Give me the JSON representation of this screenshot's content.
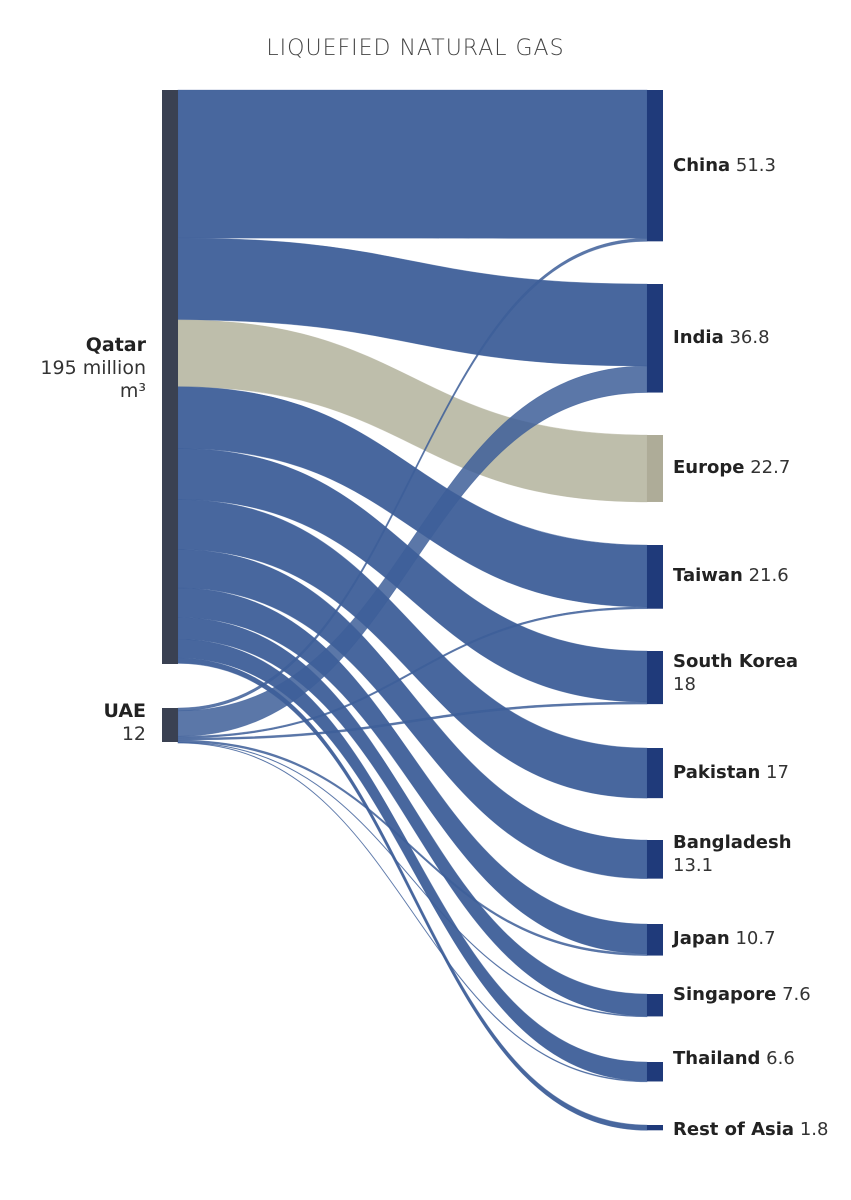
{
  "chart_data": {
    "type": "sankey",
    "title": "LIQUEFIED NATURAL GAS",
    "unit_label": "million",
    "unit_suffix": "m³",
    "sources": [
      {
        "name": "Qatar",
        "value": 195,
        "value_label": "195 million"
      },
      {
        "name": "UAE",
        "value": 12,
        "value_label": "12"
      }
    ],
    "destinations": [
      {
        "name": "China",
        "value": 51.3,
        "value_label": "51.3",
        "color": "#1f3a7a"
      },
      {
        "name": "India",
        "value": 36.8,
        "value_label": "36.8",
        "color": "#1f3a7a"
      },
      {
        "name": "Europe",
        "value": 22.7,
        "value_label": "22.7",
        "color": "#aeac98"
      },
      {
        "name": "Taiwan",
        "value": 21.6,
        "value_label": "21.6",
        "color": "#1f3a7a"
      },
      {
        "name": "South Korea",
        "value": 18,
        "value_label": "18",
        "color": "#1f3a7a"
      },
      {
        "name": "Pakistan",
        "value": 17,
        "value_label": "17",
        "color": "#1f3a7a"
      },
      {
        "name": "Bangladesh",
        "value": 13.1,
        "value_label": "13.1",
        "color": "#1f3a7a"
      },
      {
        "name": "Japan",
        "value": 10.7,
        "value_label": "10.7",
        "color": "#1f3a7a"
      },
      {
        "name": "Singapore",
        "value": 7.6,
        "value_label": "7.6",
        "color": "#1f3a7a"
      },
      {
        "name": "Thailand",
        "value": 6.6,
        "value_label": "6.6",
        "color": "#1f3a7a"
      },
      {
        "name": "Rest of Asia",
        "value": 1.8,
        "value_label": "1.8",
        "color": "#1f3a7a"
      }
    ],
    "flows": [
      {
        "from": "Qatar",
        "to": "China",
        "value": 50.3
      },
      {
        "from": "Qatar",
        "to": "India",
        "value": 27.8
      },
      {
        "from": "Qatar",
        "to": "Europe",
        "value": 22.7
      },
      {
        "from": "Qatar",
        "to": "Taiwan",
        "value": 21.0
      },
      {
        "from": "Qatar",
        "to": "South Korea",
        "value": 17.3
      },
      {
        "from": "Qatar",
        "to": "Pakistan",
        "value": 17.0
      },
      {
        "from": "Qatar",
        "to": "Bangladesh",
        "value": 13.1
      },
      {
        "from": "Qatar",
        "to": "Japan",
        "value": 10.0
      },
      {
        "from": "Qatar",
        "to": "Singapore",
        "value": 7.4
      },
      {
        "from": "Qatar",
        "to": "Thailand",
        "value": 6.4
      },
      {
        "from": "Qatar",
        "to": "Rest of Asia",
        "value": 1.8
      },
      {
        "from": "UAE",
        "to": "China",
        "value": 1.0
      },
      {
        "from": "UAE",
        "to": "India",
        "value": 9.0
      },
      {
        "from": "UAE",
        "to": "Taiwan",
        "value": 0.6
      },
      {
        "from": "UAE",
        "to": "South Korea",
        "value": 0.7
      },
      {
        "from": "UAE",
        "to": "Japan",
        "value": 0.7
      },
      {
        "from": "UAE",
        "to": "Singapore",
        "value": 0.2
      },
      {
        "from": "UAE",
        "to": "Thailand",
        "value": 0.2
      }
    ],
    "colors": {
      "flow": "#3e5f99",
      "flow_europe": "#b9b8a4",
      "source_bar": "#3a4152",
      "dest_bar": "#1f3a7a",
      "dest_bar_europe": "#aeac98"
    }
  }
}
